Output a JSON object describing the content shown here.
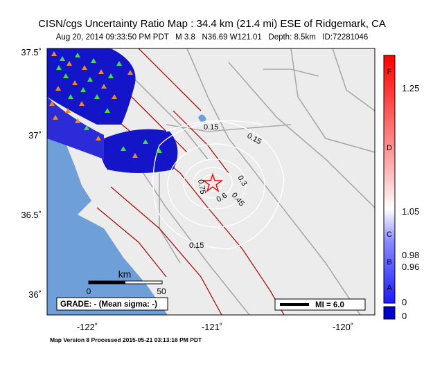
{
  "header": {
    "title": "CISN/cgs Uncertainty Ratio Map : 34.4 km (21.4 mi) ESE of Ridgemark, CA",
    "subtitle": "Aug 20, 2014 09:33:50 PM PDT   M 3.8   N36.69 W121.01   Depth: 8.5km   ID:72281046"
  },
  "map": {
    "lat_labels": [
      "37.5˚",
      "37˚",
      "36.5˚",
      "36˚"
    ],
    "lon_labels": [
      "-122˚",
      "-121˚",
      "-120˚"
    ],
    "contour_labels": [
      "0.15",
      "0.15",
      "0.3",
      "0.45",
      "0.6",
      "0.75",
      "0.15"
    ],
    "scale_bar": {
      "unit": "km",
      "labels": [
        "0",
        "50"
      ]
    },
    "grade": "GRADE: - (Mean sigma: -)",
    "legend": "MI = 6.0"
  },
  "colorbar": {
    "grades": [
      "F",
      "D",
      "C",
      "B",
      "A"
    ],
    "values": [
      "1.25",
      "1.05",
      "0.98",
      "0.96",
      "0"
    ],
    "bottom_label": "0"
  },
  "footer": "Map Version 8 Processed 2015-05-21 03:13:16 PM PDT"
}
